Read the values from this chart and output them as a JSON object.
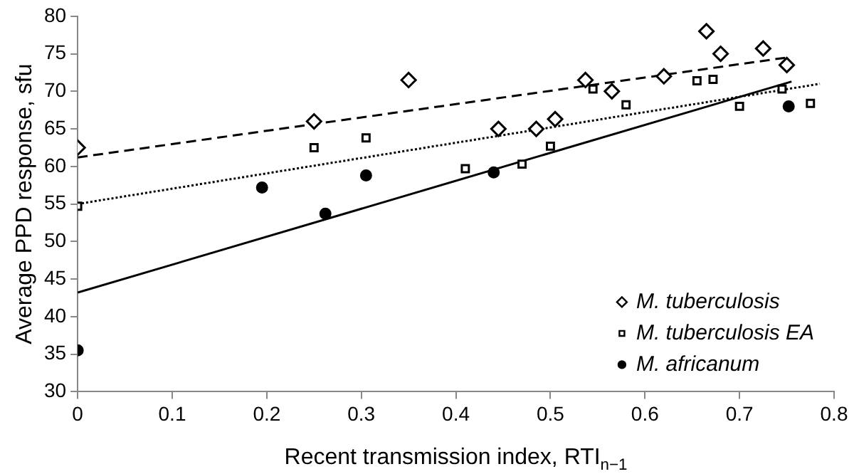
{
  "chart_data": {
    "type": "scatter",
    "xlabel": "Recent transmission index, RTI$_{n−1}$",
    "ylabel": "Average PPD response, sfu",
    "xlim": [
      0,
      0.8
    ],
    "xticks": [
      0,
      0.1,
      0.2,
      0.3,
      0.4,
      0.5,
      0.6,
      0.7,
      0.8
    ],
    "ylim": [
      30,
      80
    ],
    "yticks": [
      30,
      35,
      40,
      45,
      50,
      55,
      60,
      65,
      70,
      75,
      80
    ],
    "grid": false,
    "legend": "bottom right",
    "series": [
      {
        "name": "M. tuberculosis",
        "color": "#000000",
        "marker": "diamond",
        "x": [
          0,
          0.25,
          0.35,
          0.445,
          0.485,
          0.505,
          0.537,
          0.565,
          0.62,
          0.665,
          0.68,
          0.725,
          0.75
        ],
        "values": [
          62.5,
          66,
          71.5,
          65,
          65,
          66.3,
          71.5,
          70,
          72,
          78,
          75,
          75.7,
          73.5
        ]
      },
      {
        "name": "M. tuberculosis EA",
        "color": "#000000",
        "marker": "square",
        "x": [
          0,
          0.25,
          0.305,
          0.41,
          0.47,
          0.5,
          0.545,
          0.58,
          0.655,
          0.672,
          0.7,
          0.745,
          0.775
        ],
        "values": [
          54.7,
          62.5,
          63.8,
          59.7,
          60.3,
          62.7,
          70.3,
          68.2,
          71.4,
          71.6,
          68,
          70.3,
          68.4
        ]
      },
      {
        "name": "M. africanum",
        "color": "#000000",
        "marker": "circle",
        "x": [
          0,
          0.195,
          0.262,
          0.305,
          0.44,
          0.752
        ],
        "values": [
          35.5,
          57.2,
          53.7,
          58.8,
          59.2,
          68
        ]
      },
      {
        "type": "line",
        "color": "#000000",
        "marker": "none",
        "line_style": "dashed",
        "x": [
          0,
          0.75
        ],
        "values": [
          61.2,
          74.5
        ]
      },
      {
        "type": "line",
        "color": "#000000",
        "marker": "none",
        "line_style": "dotted",
        "x": [
          0,
          0.785
        ],
        "values": [
          55,
          71
        ]
      },
      {
        "type": "line",
        "color": "#000000",
        "marker": "none",
        "line_style": "solid",
        "x": [
          0,
          0.755
        ],
        "values": [
          43.2,
          71.3
        ]
      }
    ]
  }
}
